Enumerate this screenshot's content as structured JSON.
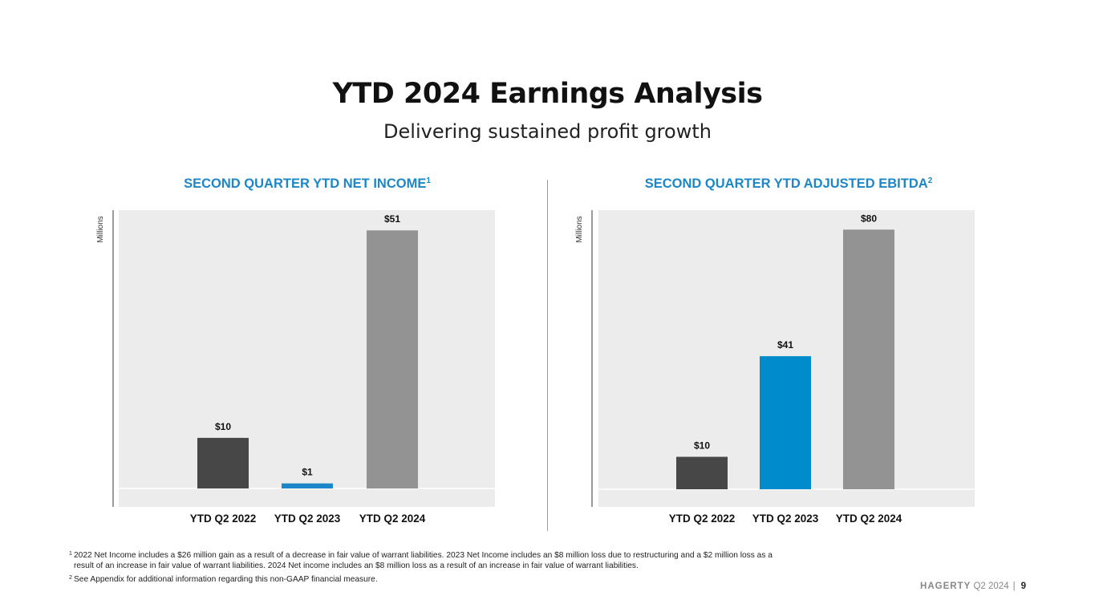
{
  "page": {
    "title": "YTD 2024 Earnings Analysis",
    "subtitle": "Delivering sustained profit growth"
  },
  "chart_data": [
    {
      "type": "bar",
      "title": "SECOND QUARTER YTD NET INCOME",
      "title_sup": "1",
      "ylabel": "Millions",
      "categories": [
        "YTD Q2 2022",
        "YTD Q2 2023",
        "YTD Q2 2024"
      ],
      "values": [
        10,
        1,
        51
      ],
      "labels": [
        "$10",
        "$1",
        "$51"
      ],
      "colors": [
        "#474747",
        "#1b87c9",
        "#939393"
      ],
      "ylim": [
        0,
        55
      ],
      "grid": false,
      "legend": "none"
    },
    {
      "type": "bar",
      "title": "SECOND QUARTER YTD ADJUSTED EBITDA",
      "title_sup": "2",
      "ylabel": "Millions",
      "categories": [
        "YTD Q2 2022",
        "YTD Q2 2023",
        "YTD Q2 2024"
      ],
      "values": [
        10,
        41,
        80
      ],
      "labels": [
        "$10",
        "$41",
        "$80"
      ],
      "colors": [
        "#474747",
        "#008ccc",
        "#939393"
      ],
      "ylim": [
        0,
        86
      ],
      "grid": false,
      "legend": "none"
    }
  ],
  "footnotes": [
    {
      "marker": "1",
      "text": "2022 Net Income includes a $26 million gain as a result of a decrease in fair value of warrant liabilities. 2023 Net Income includes an $8 million loss due to restructuring and a $2 million loss as a result of an increase in fair value of warrant liabilities. 2024 Net income includes an $8 million loss as a result of an increase in fair value of warrant liabilities."
    },
    {
      "marker": "2",
      "text": "See Appendix for additional information regarding this non-GAAP financial measure."
    }
  ],
  "footer": {
    "brand": "HAGERTY",
    "period": "Q2 2024",
    "separator": "|",
    "page_number": "9"
  },
  "colors": {
    "accent": "#1b87c9",
    "panel_bg": "#ececec",
    "text": "#111111"
  }
}
